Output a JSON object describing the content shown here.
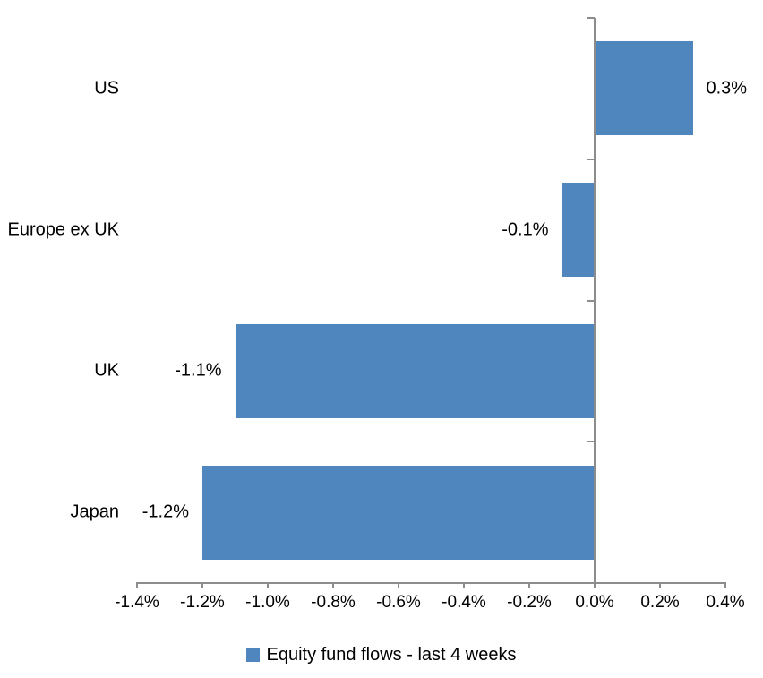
{
  "chart_data": {
    "type": "bar",
    "orientation": "horizontal",
    "title": "",
    "categories": [
      "US",
      "Europe ex UK",
      "UK",
      "Japan"
    ],
    "series": [
      {
        "name": "Equity fund flows - last 4 weeks",
        "values": [
          0.3,
          -0.1,
          -1.1,
          -1.2
        ],
        "data_labels": [
          "0.3%",
          "-0.1%",
          "-1.1%",
          "-1.2%"
        ]
      }
    ],
    "x_axis": {
      "tick_labels": [
        "-1.4%",
        "-1.2%",
        "-1.0%",
        "-0.8%",
        "-0.6%",
        "-0.4%",
        "-0.2%",
        "0.0%",
        "0.2%",
        "0.4%"
      ],
      "tick_values": [
        -1.4,
        -1.2,
        -1.0,
        -0.8,
        -0.6,
        -0.4,
        -0.2,
        0.0,
        0.2,
        0.4
      ],
      "min": -1.4,
      "max": 0.4,
      "unit": "%"
    },
    "legend": {
      "position": "bottom",
      "entries": [
        "Equity fund flows - last 4 weeks"
      ]
    },
    "grid": false,
    "colors": {
      "bar": "#4E86BD",
      "axis": "#8C8C8C",
      "text": "#000000",
      "background": "#FFFFFF"
    }
  }
}
